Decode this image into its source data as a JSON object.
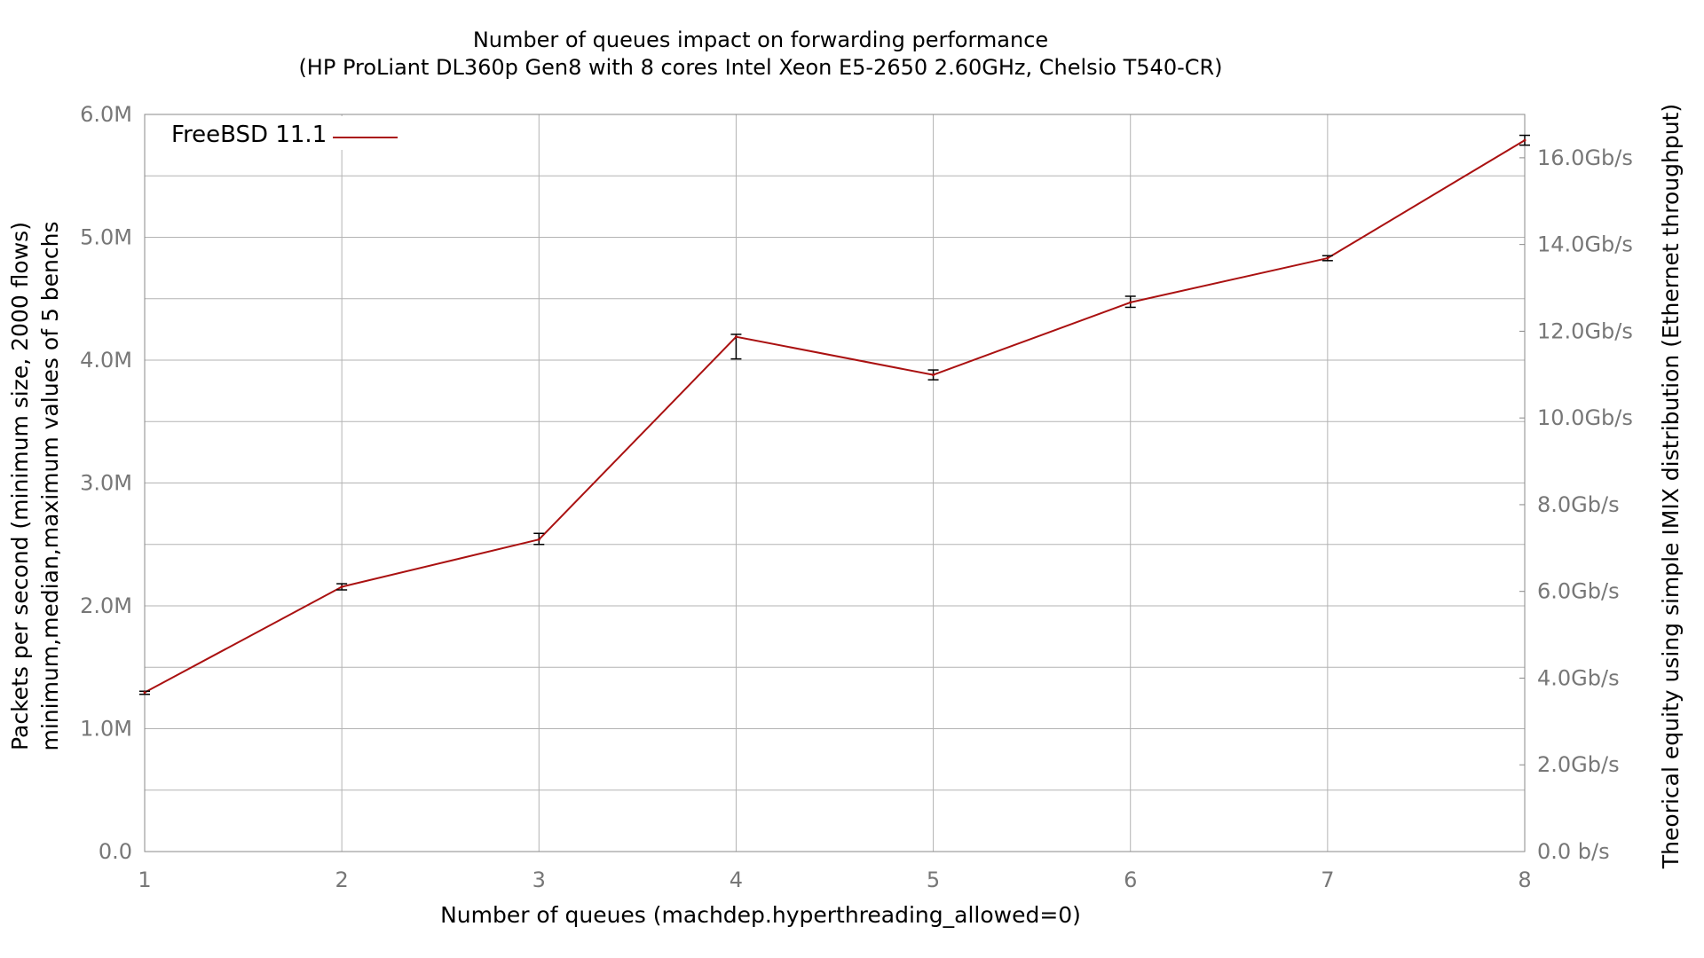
{
  "chart_data": {
    "type": "line",
    "title": "Number of queues impact on forwarding performance",
    "subtitle": "(HP ProLiant DL360p Gen8 with 8 cores Intel Xeon E5-2650 2.60GHz, Chelsio T540-CR)",
    "xlabel": "Number of queues (machdep.hyperthreading_allowed=0)",
    "ylabel_line1": "Packets per second (minimum size, 2000 flows)",
    "ylabel_line2": "minimum,median,maximum values of 5 benchs",
    "y2label": "Theorical equity using simple IMIX distribution (Ethernet throughput)",
    "xlim": [
      1,
      8
    ],
    "ylim": [
      0,
      6000000
    ],
    "y2lim": [
      0,
      17000000000
    ],
    "grid": true,
    "legend_position": "top-left",
    "x_ticks": [
      "1",
      "2",
      "3",
      "4",
      "5",
      "6",
      "7",
      "8"
    ],
    "y_ticks": [
      {
        "value": 0,
        "label": "0.0"
      },
      {
        "value": 1000000,
        "label": "1.0M"
      },
      {
        "value": 2000000,
        "label": "2.0M"
      },
      {
        "value": 3000000,
        "label": "3.0M"
      },
      {
        "value": 4000000,
        "label": "4.0M"
      },
      {
        "value": 5000000,
        "label": "5.0M"
      },
      {
        "value": 6000000,
        "label": "6.0M"
      }
    ],
    "y2_ticks": [
      {
        "value": 0,
        "label": "0.0 b/s"
      },
      {
        "value": 2000000000,
        "label": "2.0Gb/s"
      },
      {
        "value": 4000000000,
        "label": "4.0Gb/s"
      },
      {
        "value": 6000000000,
        "label": "6.0Gb/s"
      },
      {
        "value": 8000000000,
        "label": "8.0Gb/s"
      },
      {
        "value": 10000000000,
        "label": "10.0Gb/s"
      },
      {
        "value": 12000000000,
        "label": "12.0Gb/s"
      },
      {
        "value": 14000000000,
        "label": "14.0Gb/s"
      },
      {
        "value": 16000000000,
        "label": "16.0Gb/s"
      }
    ],
    "series": [
      {
        "name": "FreeBSD 11.1",
        "color": "#aa1111",
        "x": [
          1,
          2,
          3,
          4,
          5,
          6,
          7,
          8
        ],
        "median": [
          1295000,
          2155000,
          2540000,
          4190000,
          3880000,
          4470000,
          4830000,
          5790000
        ],
        "min": [
          1280000,
          2130000,
          2500000,
          4010000,
          3840000,
          4430000,
          4810000,
          5750000
        ],
        "max": [
          1305000,
          2180000,
          2590000,
          4210000,
          3920000,
          4520000,
          4850000,
          5830000
        ]
      }
    ]
  }
}
